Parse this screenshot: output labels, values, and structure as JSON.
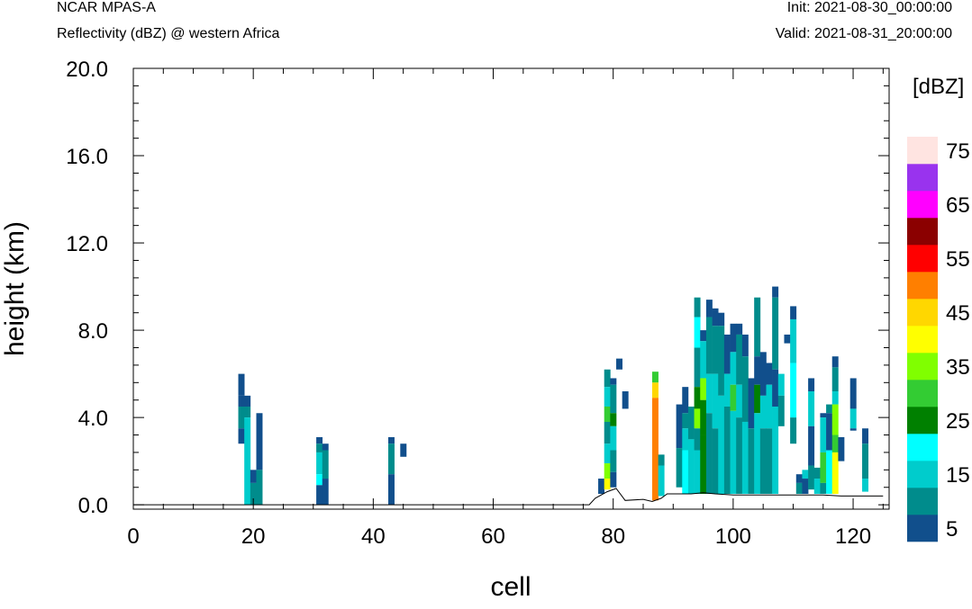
{
  "header": {
    "model": "NCAR MPAS-A",
    "field": "Reflectivity (dBZ) @ western Africa",
    "init": "Init: 2021-08-30_00:00:00",
    "valid": "Valid: 2021-08-31_20:00:00"
  },
  "chart_data": {
    "type": "heatmap",
    "xlabel": "cell",
    "ylabel": "height (km)",
    "xlim": [
      0,
      126
    ],
    "ylim": [
      -0.2,
      20.0
    ],
    "x_ticks": [
      "0",
      "20",
      "40",
      "60",
      "80",
      "100",
      "120"
    ],
    "y_ticks": [
      "0.0",
      "4.0",
      "8.0",
      "12.0",
      "16.0",
      "20.0"
    ],
    "colorbar": {
      "unit": "[dBZ]",
      "labels": [
        "5",
        "15",
        "25",
        "35",
        "45",
        "55",
        "65",
        "75"
      ],
      "colors": [
        "#114f8c",
        "#008c8c",
        "#00cccc",
        "#00ffff",
        "#008000",
        "#33cc33",
        "#80ff00",
        "#ffff00",
        "#ffd700",
        "#ff7f00",
        "#ff0000",
        "#8b0000",
        "#ff00ff",
        "#9933ee",
        "#ffe4e1"
      ]
    },
    "terrain": [
      [
        0,
        0
      ],
      [
        76,
        0
      ],
      [
        77,
        0.3
      ],
      [
        79,
        0.6
      ],
      [
        80.5,
        0.75
      ],
      [
        82,
        0.2
      ],
      [
        85,
        0.25
      ],
      [
        86.5,
        0.15
      ],
      [
        88,
        0.3
      ],
      [
        89,
        0.5
      ],
      [
        93,
        0.5
      ],
      [
        95,
        0.55
      ],
      [
        97,
        0.5
      ],
      [
        100,
        0.45
      ],
      [
        105,
        0.45
      ],
      [
        110,
        0.45
      ],
      [
        115,
        0.45
      ],
      [
        118,
        0.4
      ],
      [
        120,
        0.4
      ],
      [
        125,
        0.4
      ]
    ],
    "columns": [
      {
        "x": 18,
        "cells": [
          [
            5.0,
            6.0,
            0
          ],
          [
            4.5,
            5.0,
            0
          ],
          [
            3.5,
            4.5,
            1
          ],
          [
            2.8,
            3.5,
            0
          ]
        ]
      },
      {
        "x": 19,
        "cells": [
          [
            4.5,
            5.0,
            0
          ],
          [
            4.0,
            4.5,
            1
          ],
          [
            0,
            4.0,
            2
          ]
        ]
      },
      {
        "x": 20,
        "cells": [
          [
            1.0,
            1.6,
            0
          ],
          [
            0,
            1.0,
            1
          ]
        ]
      },
      {
        "x": 21,
        "cells": [
          [
            1.6,
            4.2,
            0
          ],
          [
            0,
            1.6,
            1
          ]
        ]
      },
      {
        "x": 31,
        "cells": [
          [
            2.8,
            3.1,
            0
          ],
          [
            2.4,
            2.8,
            1
          ],
          [
            1.4,
            2.4,
            2
          ],
          [
            0.9,
            1.4,
            3
          ],
          [
            0,
            0.9,
            0
          ]
        ]
      },
      {
        "x": 32,
        "cells": [
          [
            2.5,
            2.8,
            0
          ],
          [
            1.2,
            2.5,
            1
          ],
          [
            0,
            1.2,
            0
          ]
        ]
      },
      {
        "x": 43,
        "cells": [
          [
            2.8,
            3.1,
            0
          ],
          [
            1.4,
            2.8,
            1
          ],
          [
            0,
            1.4,
            0
          ]
        ]
      },
      {
        "x": 45,
        "cells": [
          [
            2.2,
            2.8,
            0
          ]
        ]
      },
      {
        "x": 78,
        "cells": [
          [
            0.5,
            1.2,
            0
          ]
        ]
      },
      {
        "x": 79,
        "cells": [
          [
            5.4,
            6.2,
            1
          ],
          [
            4.5,
            5.4,
            2
          ],
          [
            3.8,
            4.5,
            5
          ],
          [
            2.8,
            3.8,
            1
          ],
          [
            1.9,
            2.8,
            2
          ],
          [
            1.2,
            1.9,
            6
          ],
          [
            0.7,
            1.2,
            7
          ]
        ]
      },
      {
        "x": 80,
        "cells": [
          [
            5.5,
            5.8,
            0
          ],
          [
            4.2,
            5.5,
            1
          ],
          [
            3.6,
            4.2,
            4
          ],
          [
            2.5,
            3.6,
            2
          ],
          [
            1.5,
            2.5,
            1
          ],
          [
            0.8,
            1.5,
            0
          ]
        ]
      },
      {
        "x": 81,
        "cells": [
          [
            6.2,
            6.7,
            0
          ]
        ]
      },
      {
        "x": 82,
        "cells": [
          [
            4.4,
            5.2,
            0
          ]
        ]
      },
      {
        "x": 87,
        "cells": [
          [
            5.6,
            6.1,
            5
          ],
          [
            4.9,
            5.6,
            8
          ],
          [
            0.2,
            4.9,
            9
          ]
        ]
      },
      {
        "x": 88,
        "cells": [
          [
            1.8,
            2.3,
            1
          ],
          [
            0.4,
            1.8,
            2
          ]
        ]
      },
      {
        "x": 91,
        "cells": [
          [
            2.6,
            4.6,
            0
          ],
          [
            0.8,
            2.6,
            1
          ]
        ]
      },
      {
        "x": 92,
        "cells": [
          [
            4.2,
            5.4,
            0
          ],
          [
            3.5,
            4.2,
            1
          ],
          [
            2.5,
            3.5,
            2
          ],
          [
            0.5,
            2.5,
            3
          ]
        ]
      },
      {
        "x": 93,
        "cells": [
          [
            3.0,
            4.5,
            1
          ],
          [
            0.5,
            3.0,
            2
          ]
        ]
      },
      {
        "x": 94,
        "cells": [
          [
            8.6,
            9.5,
            1
          ],
          [
            7.2,
            8.6,
            3
          ],
          [
            5.4,
            7.2,
            1
          ],
          [
            4.4,
            5.4,
            4
          ],
          [
            3.5,
            4.4,
            6
          ],
          [
            2.5,
            3.5,
            1
          ],
          [
            0.5,
            2.5,
            2
          ]
        ]
      },
      {
        "x": 95,
        "cells": [
          [
            7.5,
            8.0,
            0
          ],
          [
            5.8,
            7.5,
            2
          ],
          [
            4.8,
            5.8,
            6
          ],
          [
            3.2,
            4.8,
            4
          ],
          [
            0.5,
            3.2,
            4
          ]
        ]
      },
      {
        "x": 96,
        "cells": [
          [
            8.6,
            9.4,
            0
          ],
          [
            6.0,
            8.6,
            1
          ],
          [
            4.2,
            6.0,
            2
          ],
          [
            0.5,
            4.2,
            1
          ]
        ]
      },
      {
        "x": 97,
        "cells": [
          [
            8.2,
            9.0,
            0
          ],
          [
            6.0,
            8.2,
            1
          ],
          [
            3.5,
            6.0,
            2
          ],
          [
            0.5,
            3.5,
            1
          ]
        ]
      },
      {
        "x": 98,
        "cells": [
          [
            8.2,
            8.8,
            0
          ],
          [
            5.0,
            8.2,
            1
          ],
          [
            0.5,
            5.0,
            2
          ]
        ]
      },
      {
        "x": 99,
        "cells": [
          [
            6.0,
            7.8,
            0
          ],
          [
            4.5,
            6.0,
            2
          ],
          [
            0.5,
            4.5,
            1
          ]
        ]
      },
      {
        "x": 100,
        "cells": [
          [
            7.0,
            8.3,
            0
          ],
          [
            5.5,
            7.0,
            2
          ],
          [
            4.3,
            5.5,
            5
          ],
          [
            0.5,
            4.3,
            2
          ]
        ]
      },
      {
        "x": 101,
        "cells": [
          [
            7.8,
            8.3,
            0
          ],
          [
            5.5,
            7.8,
            1
          ],
          [
            4.0,
            5.5,
            2
          ],
          [
            0.5,
            4.0,
            1
          ]
        ]
      },
      {
        "x": 102,
        "cells": [
          [
            6.8,
            7.8,
            0
          ],
          [
            3.8,
            6.8,
            1
          ],
          [
            0.5,
            3.8,
            2
          ]
        ]
      },
      {
        "x": 103,
        "cells": [
          [
            3.5,
            5.8,
            0
          ],
          [
            0.5,
            3.5,
            1
          ]
        ]
      },
      {
        "x": 104,
        "cells": [
          [
            6.8,
            9.5,
            1
          ],
          [
            5.5,
            6.8,
            0
          ],
          [
            4.2,
            5.5,
            4
          ],
          [
            0.5,
            4.2,
            2
          ]
        ]
      },
      {
        "x": 105,
        "cells": [
          [
            5.0,
            7.0,
            0
          ],
          [
            3.5,
            5.0,
            2
          ],
          [
            0.5,
            3.5,
            1
          ]
        ]
      },
      {
        "x": 106,
        "cells": [
          [
            5.5,
            6.5,
            0
          ],
          [
            3.5,
            5.5,
            2
          ],
          [
            0.5,
            3.5,
            1
          ]
        ]
      },
      {
        "x": 107,
        "cells": [
          [
            9.5,
            10.0,
            0
          ],
          [
            6.2,
            9.5,
            1
          ],
          [
            4.5,
            6.2,
            0
          ],
          [
            0.5,
            4.5,
            2
          ]
        ]
      },
      {
        "x": 108,
        "cells": [
          [
            5.0,
            6.0,
            2
          ],
          [
            3.6,
            5.0,
            1
          ]
        ]
      },
      {
        "x": 109,
        "cells": [
          [
            7.4,
            7.8,
            0
          ]
        ]
      },
      {
        "x": 110,
        "cells": [
          [
            8.5,
            9.1,
            0
          ],
          [
            6.5,
            8.5,
            2
          ],
          [
            4.0,
            6.5,
            3
          ],
          [
            2.8,
            4.0,
            1
          ]
        ]
      },
      {
        "x": 111,
        "cells": [
          [
            1.0,
            1.4,
            0
          ],
          [
            0.5,
            1.0,
            1
          ]
        ]
      },
      {
        "x": 112,
        "cells": [
          [
            1.2,
            1.6,
            2
          ],
          [
            0.5,
            1.2,
            0
          ]
        ]
      },
      {
        "x": 113,
        "cells": [
          [
            5.2,
            5.8,
            0
          ],
          [
            3.6,
            5.2,
            2
          ],
          [
            1.8,
            3.6,
            0
          ],
          [
            0.7,
            1.8,
            1
          ]
        ]
      },
      {
        "x": 114,
        "cells": [
          [
            1.2,
            1.7,
            1
          ],
          [
            0.5,
            1.2,
            2
          ]
        ]
      },
      {
        "x": 115,
        "cells": [
          [
            4.0,
            4.2,
            0
          ],
          [
            2.4,
            4.0,
            2
          ],
          [
            1.0,
            2.4,
            5
          ],
          [
            0.5,
            1.0,
            1
          ]
        ]
      },
      {
        "x": 116,
        "cells": [
          [
            4.2,
            4.6,
            1
          ],
          [
            2.5,
            4.2,
            0
          ],
          [
            0.5,
            2.5,
            3
          ]
        ]
      },
      {
        "x": 117,
        "cells": [
          [
            6.3,
            6.8,
            0
          ],
          [
            5.2,
            6.3,
            1
          ],
          [
            4.6,
            5.2,
            2
          ],
          [
            3.2,
            4.6,
            6
          ],
          [
            2.4,
            3.2,
            5
          ],
          [
            0.5,
            2.4,
            7
          ]
        ]
      },
      {
        "x": 118,
        "cells": [
          [
            2.0,
            3.1,
            0
          ]
        ]
      },
      {
        "x": 120,
        "cells": [
          [
            4.4,
            5.8,
            0
          ],
          [
            3.5,
            4.4,
            2
          ],
          [
            3.4,
            3.5,
            0
          ]
        ]
      },
      {
        "x": 122,
        "cells": [
          [
            2.8,
            3.5,
            0
          ],
          [
            1.2,
            2.8,
            1
          ],
          [
            0.6,
            1.2,
            2
          ]
        ]
      }
    ]
  }
}
